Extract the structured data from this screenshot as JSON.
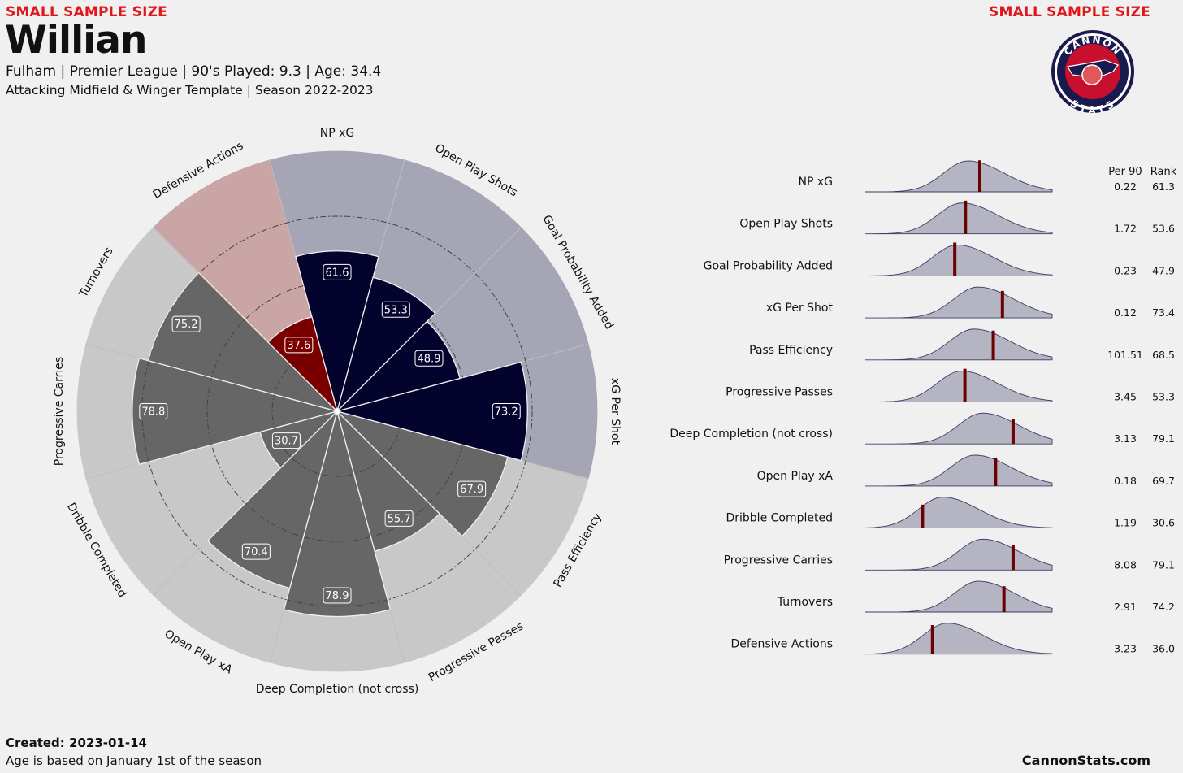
{
  "header": {
    "warning_left": "SMALL SAMPLE SIZE",
    "warning_right": "SMALL SAMPLE SIZE",
    "player_name": "Willian",
    "info_line": "Fulham  | Premier League | 90's Played: 9.3 | Age: 34.4",
    "template_line": "Attacking Midfield & Winger Template | Season 2022-2023"
  },
  "logo": {
    "top_text": "CANNON",
    "bottom_text": "STATS"
  },
  "footer": {
    "created": "Created: 2023-01-14",
    "age_note": "Age is based on January 1st of the season",
    "website": "CannonStats.com"
  },
  "colors": {
    "attack": "#03032e",
    "attack_bg": "#a6a5b5",
    "defense": "#7a0000",
    "defense_bg": "#c9a5a5",
    "possession": "#666666",
    "possession_bg": "#c8c8c8",
    "background": "#f0f0f0",
    "marker": "#6b0000",
    "warning": "#e0161b"
  },
  "chart_data": [
    {
      "type": "radar",
      "categories": [
        "NP xG",
        "Open Play Shots",
        "Goal Probability Added",
        "xG Per Shot",
        "Pass Efficiency",
        "Progressive Passes",
        "Deep Completion (not cross)",
        "Open Play xA",
        "Dribble Completed",
        "Progressive Carries",
        "Turnovers",
        "Defensive Actions"
      ],
      "values": [
        61.6,
        53.3,
        48.9,
        73.2,
        67.9,
        55.7,
        78.9,
        70.4,
        30.7,
        78.8,
        75.2,
        37.6
      ],
      "labels": [
        "61.6",
        "53.3",
        "48.9",
        "73.2",
        "67.9",
        "55.7",
        "78.9",
        "70.4",
        "30.7",
        "78.8",
        "75.2",
        "37.6"
      ],
      "groups": [
        "attack",
        "attack",
        "attack",
        "attack",
        "possession",
        "possession",
        "possession",
        "possession",
        "possession",
        "possession",
        "possession",
        "defense"
      ],
      "ylim": [
        0,
        100
      ]
    },
    {
      "type": "distribution",
      "columns": [
        "Per 90",
        "Rank"
      ],
      "metrics": [
        "NP xG",
        "Open Play Shots",
        "Goal Probability Added",
        "xG Per Shot",
        "Pass Efficiency",
        "Progressive Passes",
        "Deep Completion (not cross)",
        "Open Play xA",
        "Dribble Completed",
        "Progressive Carries",
        "Turnovers",
        "Defensive Actions"
      ],
      "per90": [
        "0.22",
        "1.72",
        "0.23",
        "0.12",
        "101.51",
        "3.45",
        "3.13",
        "0.18",
        "1.19",
        "8.08",
        "2.91",
        "3.23"
      ],
      "rank": [
        "61.3",
        "53.6",
        "47.9",
        "73.4",
        "68.5",
        "53.3",
        "79.1",
        "69.7",
        "30.6",
        "79.1",
        "74.2",
        "36.0"
      ]
    }
  ]
}
